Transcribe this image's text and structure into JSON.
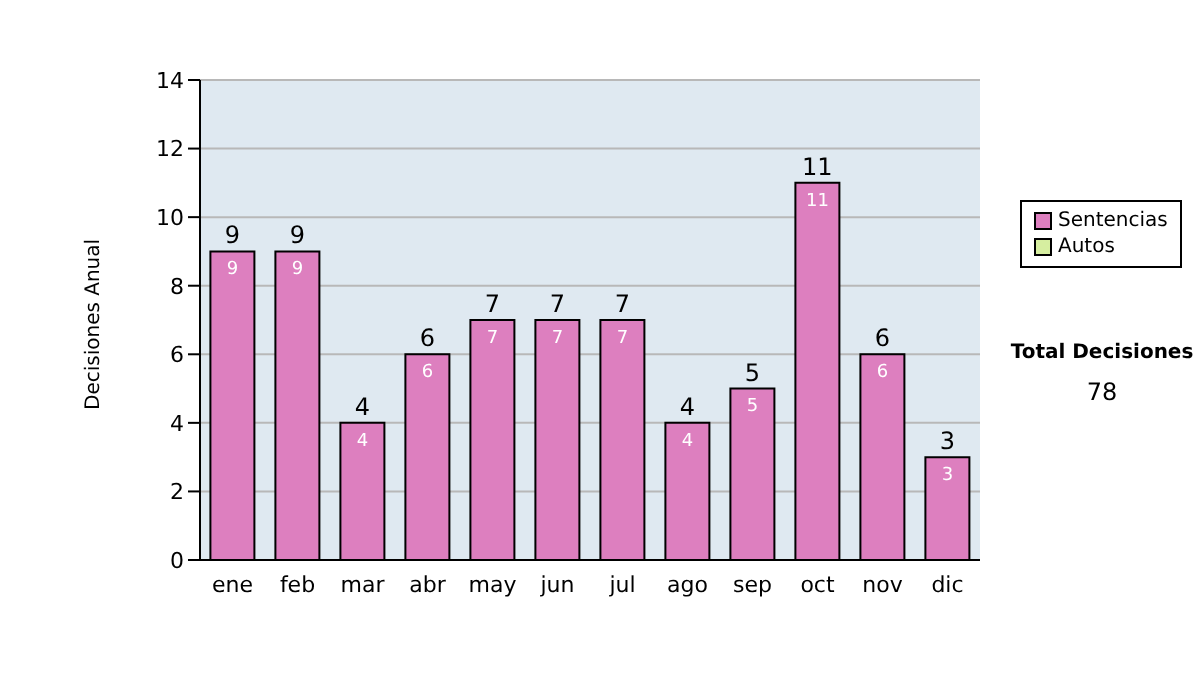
{
  "chart_data": {
    "type": "bar",
    "ylabel": "Decisiones Anual",
    "categories": [
      "ene",
      "feb",
      "mar",
      "abr",
      "may",
      "jun",
      "jul",
      "ago",
      "sep",
      "oct",
      "nov",
      "dic"
    ],
    "series": [
      {
        "name": "Sentencias",
        "color": "#dd7fbf",
        "values": [
          9,
          9,
          4,
          6,
          7,
          7,
          7,
          4,
          5,
          11,
          6,
          3
        ],
        "value_labels": [
          "9",
          "9",
          "4",
          "6",
          "7",
          "7",
          "7",
          "4",
          "5",
          "11",
          "6",
          "3"
        ]
      },
      {
        "name": "Autos",
        "color": "#d6eea0",
        "values": [
          0,
          0,
          0,
          0,
          0,
          0,
          0,
          0,
          0,
          0,
          0,
          0
        ]
      }
    ],
    "stacked": true,
    "ylim": [
      0,
      14
    ],
    "yticks": [
      0,
      2,
      4,
      6,
      8,
      10,
      12,
      14
    ],
    "grid": "y",
    "legend": "right",
    "totals": [
      "9",
      "9",
      "4",
      "6",
      "7",
      "7",
      "7",
      "4",
      "5",
      "11",
      "6",
      "3"
    ],
    "annotations": [
      "Total Decisiones",
      "78"
    ]
  }
}
